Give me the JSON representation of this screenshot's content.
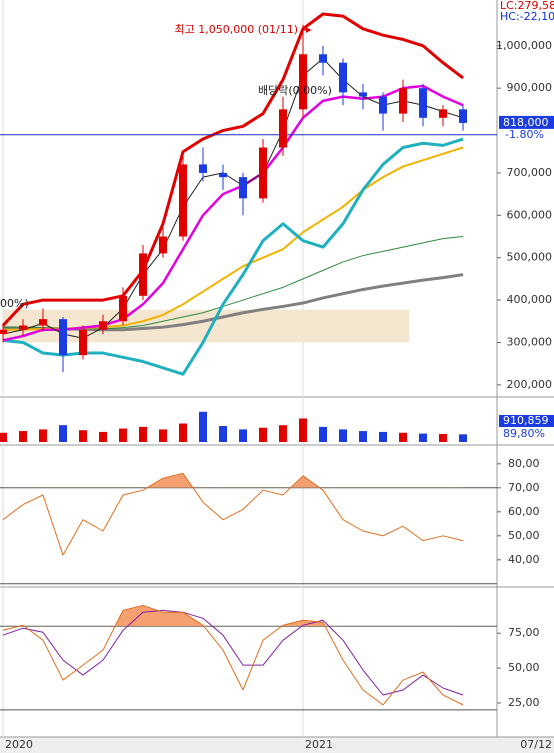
{
  "chart_data": {
    "type": "candlestick",
    "categories": [
      "2020",
      null,
      null,
      null,
      null,
      null,
      null,
      null,
      null,
      null,
      null,
      null,
      null,
      null,
      null,
      "2021",
      null,
      null,
      null,
      null,
      null,
      null,
      null,
      null
    ],
    "date_label": "07/12",
    "top_labels": [
      {
        "text": "LC:279,58",
        "color": "#e00000"
      },
      {
        "text": "HC:-22,10",
        "color": "#1030d0"
      }
    ],
    "annotations": {
      "high": "최고 1,050,000 (01/11)",
      "dividend": "배당락(0.00%)",
      "left_partial": "00%)"
    },
    "price": {
      "ylim": [
        176000,
        1108000
      ],
      "yticks": [
        {
          "value": 200000,
          "label": "200,000"
        },
        {
          "value": 300000,
          "label": "300,000"
        },
        {
          "value": 400000,
          "label": "400,000"
        },
        {
          "value": 500000,
          "label": "500,000"
        },
        {
          "value": 600000,
          "label": "600,000"
        },
        {
          "value": 700000,
          "label": "700,000"
        },
        {
          "value": 900000,
          "label": "900,000"
        },
        {
          "value": 1000000,
          "label": "1,000,000"
        }
      ],
      "up_color": "#e00000",
      "down_color": "#1a3ce0",
      "open": [
        320000,
        330000,
        340000,
        355000,
        270000,
        330000,
        350000,
        410000,
        510000,
        550000,
        720000,
        700000,
        690000,
        640000,
        760000,
        850000,
        980000,
        960000,
        890000,
        880000,
        840000,
        900000,
        830000,
        850000
      ],
      "high": [
        345000,
        355000,
        380000,
        360000,
        340000,
        365000,
        430000,
        530000,
        570000,
        740000,
        760000,
        720000,
        700000,
        780000,
        880000,
        1050000,
        1000000,
        970000,
        910000,
        890000,
        920000,
        910000,
        860000,
        860000
      ],
      "low": [
        300000,
        315000,
        325000,
        230000,
        260000,
        320000,
        340000,
        400000,
        500000,
        540000,
        680000,
        660000,
        600000,
        630000,
        740000,
        830000,
        930000,
        860000,
        850000,
        800000,
        820000,
        810000,
        810000,
        800000
      ],
      "close": [
        330000,
        340000,
        355000,
        270000,
        330000,
        350000,
        410000,
        510000,
        550000,
        720000,
        700000,
        690000,
        640000,
        760000,
        850000,
        980000,
        960000,
        890000,
        880000,
        840000,
        900000,
        830000,
        850000,
        818000
      ],
      "last_price_label": "818,000",
      "change_label": "-1.80%",
      "reference_line": 790000,
      "zone": {
        "low": 300000,
        "high": 377000,
        "from": 0,
        "to": 20.3,
        "color": "#f5e6cf"
      },
      "overlays": [
        {
          "color": "#808080",
          "width": 3,
          "values": [
            335000,
            334000,
            333000,
            332000,
            331000,
            330000,
            330000,
            333000,
            336000,
            342000,
            350000,
            360000,
            370000,
            378000,
            385000,
            393000,
            405000,
            415000,
            425000,
            433000,
            440000,
            447000,
            453000,
            460000
          ]
        },
        {
          "color": "#2e8b3e",
          "width": 1,
          "values": [
            335000,
            335000,
            335000,
            334000,
            333000,
            332000,
            335000,
            340000,
            350000,
            360000,
            370000,
            385000,
            400000,
            415000,
            430000,
            450000,
            470000,
            490000,
            505000,
            515000,
            525000,
            535000,
            545000,
            550000
          ]
        },
        {
          "color": "#f0b400",
          "width": 2,
          "values": [
            330000,
            330000,
            332000,
            333000,
            334000,
            336000,
            340000,
            350000,
            365000,
            390000,
            420000,
            450000,
            480000,
            500000,
            520000,
            560000,
            590000,
            620000,
            660000,
            690000,
            715000,
            730000,
            745000,
            760000
          ]
        },
        {
          "color": "#1fb0c0",
          "width": 3,
          "values": [
            305000,
            300000,
            275000,
            270000,
            275000,
            275000,
            265000,
            255000,
            240000,
            225000,
            300000,
            390000,
            460000,
            540000,
            580000,
            540000,
            525000,
            580000,
            660000,
            720000,
            760000,
            770000,
            765000,
            780000
          ]
        },
        {
          "color": "#e000e0",
          "width": 2.5,
          "values": [
            305000,
            315000,
            330000,
            330000,
            335000,
            340000,
            355000,
            390000,
            440000,
            520000,
            600000,
            650000,
            670000,
            700000,
            760000,
            830000,
            870000,
            880000,
            875000,
            880000,
            900000,
            905000,
            880000,
            860000
          ]
        },
        {
          "color": "#202020",
          "width": 1,
          "values": [
            320000,
            330000,
            345000,
            320000,
            310000,
            335000,
            380000,
            460000,
            520000,
            620000,
            690000,
            700000,
            670000,
            700000,
            800000,
            930000,
            970000,
            920000,
            880000,
            860000,
            870000,
            860000,
            845000,
            830000
          ]
        },
        {
          "color": "#e00000",
          "width": 3,
          "values": [
            340000,
            390000,
            400000,
            400000,
            400000,
            400000,
            410000,
            470000,
            580000,
            750000,
            780000,
            800000,
            810000,
            840000,
            920000,
            1040000,
            1075000,
            1070000,
            1040000,
            1025000,
            1015000,
            1000000,
            960000,
            924000
          ]
        }
      ]
    },
    "volume": {
      "ylim": [
        0,
        5000000
      ],
      "last_label": "910,859",
      "ratio_label": "89,80%",
      "values": [
        1100000,
        1300000,
        1500000,
        2000000,
        1400000,
        1200000,
        1600000,
        1800000,
        1500000,
        2200000,
        3600000,
        1900000,
        1500000,
        1700000,
        2000000,
        2800000,
        1800000,
        1500000,
        1300000,
        1200000,
        1100000,
        1000000,
        950000,
        910859
      ]
    },
    "rsi": {
      "ylim": [
        29.5,
        87
      ],
      "color": "#e07020",
      "fill": "#f4a070",
      "ref_lines": [
        70,
        30
      ],
      "yticks": [
        {
          "value": 40,
          "label": "40,00"
        },
        {
          "value": 50,
          "label": "50,00"
        },
        {
          "value": 60,
          "label": "60,00"
        },
        {
          "value": 70,
          "label": "70,00"
        },
        {
          "value": 80,
          "label": "80,00"
        }
      ],
      "values": [
        56.7,
        63,
        67,
        42,
        56.7,
        52,
        67,
        69,
        74,
        76,
        64,
        56.7,
        61,
        69,
        67,
        75,
        69,
        56.7,
        52,
        50,
        54,
        48,
        50,
        48
      ]
    },
    "stochastic": {
      "ylim": [
        2,
        106
      ],
      "ref_lines": [
        80,
        20
      ],
      "fill": "#f4a070",
      "yticks": [
        {
          "value": 25,
          "label": "25,00"
        },
        {
          "value": 50,
          "label": "50,00"
        },
        {
          "value": 75,
          "label": "75,00"
        }
      ],
      "k": {
        "color": "#e07020",
        "values": [
          77.1,
          80.7,
          70,
          41.4,
          52.1,
          62.9,
          91.4,
          95,
          90,
          90,
          80.7,
          62.9,
          34.3,
          70,
          80.7,
          84.3,
          82.9,
          55.7,
          34.3,
          23.6,
          41.4,
          47.1,
          30.7,
          23.6
        ]
      },
      "d": {
        "color": "#8020a0",
        "values": [
          73.6,
          78.6,
          75.7,
          55.7,
          45,
          55.7,
          77.1,
          90,
          91.4,
          90,
          85.7,
          73.6,
          52.1,
          52.1,
          70,
          80.7,
          84.3,
          70,
          48.6,
          30.7,
          34.3,
          45,
          35.7,
          30.7
        ]
      }
    }
  }
}
